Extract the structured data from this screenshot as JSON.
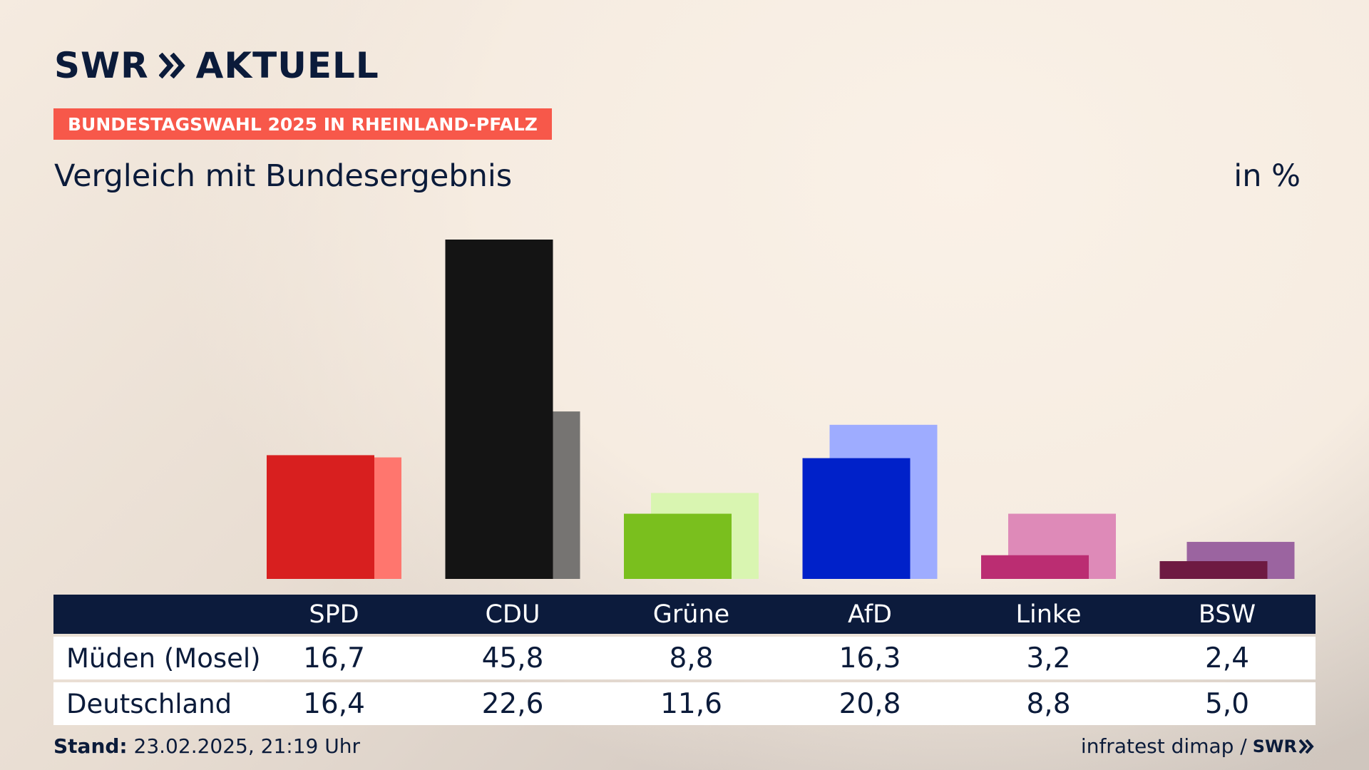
{
  "brand": {
    "left": "SWR",
    "right": "AKTUELL"
  },
  "badge": "BUNDESTAGSWAHL 2025 IN RHEINLAND-PFALZ",
  "subtitle": "Vergleich mit Bundesergebnis",
  "unit": "in %",
  "table": {
    "rows": [
      {
        "label": "Müden (Mosel)"
      },
      {
        "label": "Deutschland"
      }
    ]
  },
  "footer": {
    "stand_label": "Stand:",
    "stand_value": "23.02.2025, 21:19 Uhr",
    "source": "infratest dimap /",
    "source_brand": "SWR"
  },
  "chart_data": {
    "type": "bar",
    "categories": [
      "SPD",
      "CDU",
      "Grüne",
      "AfD",
      "Linke",
      "BSW"
    ],
    "series": [
      {
        "name": "Müden (Mosel)",
        "values": [
          16.7,
          45.8,
          8.8,
          16.3,
          3.2,
          2.4
        ],
        "labels": [
          "16,7",
          "45,8",
          "8,8",
          "16,3",
          "3,2",
          "2,4"
        ]
      },
      {
        "name": "Deutschland",
        "values": [
          16.4,
          22.6,
          11.6,
          20.8,
          8.8,
          5.0
        ],
        "labels": [
          "16,4",
          "22,6",
          "11,6",
          "20,8",
          "8,8",
          "5,0"
        ]
      }
    ],
    "colors": {
      "local": [
        "#d81f1f",
        "#141414",
        "#7abf1e",
        "#0021c9",
        "#bb2d72",
        "#6e1a42"
      ],
      "national": [
        "#ff766e",
        "#767472",
        "#d9f5b1",
        "#9eacff",
        "#de8ab8",
        "#9b64a0"
      ]
    },
    "ylim": [
      0,
      45.8
    ],
    "grid": false
  }
}
